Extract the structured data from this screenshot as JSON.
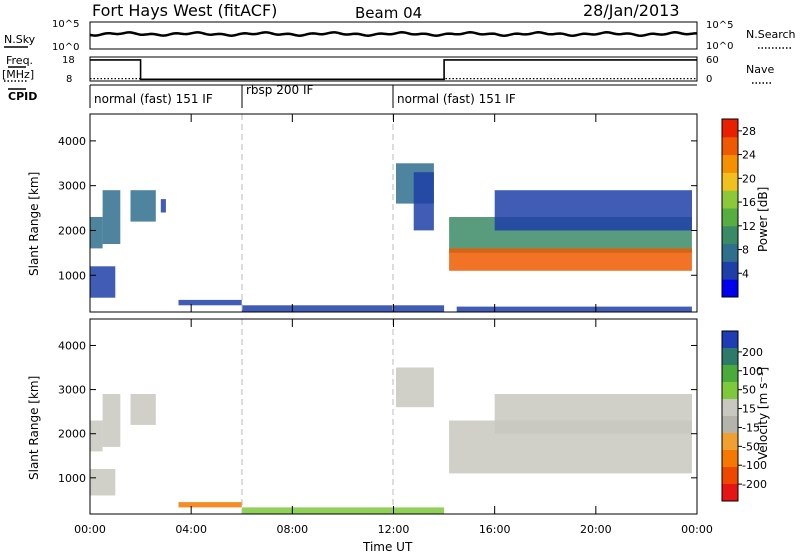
{
  "header": {
    "station": "Fort Hays West (fitACF)",
    "beam": "Beam 04",
    "date": "28/Jan/2013"
  },
  "noise_panel": {
    "left_label": "N.Sky",
    "right_label": "N.Search",
    "y_ticks_left": [
      "10^5",
      "10^0"
    ],
    "y_ticks_right": [
      "10^5",
      "10^0"
    ]
  },
  "freq_panel": {
    "left_label_1": "Freq.",
    "left_label_2": "[MHz]",
    "right_label": "Nave",
    "y_ticks_left": [
      "18",
      "8"
    ],
    "y_ticks_right": [
      "60",
      "0"
    ],
    "freq_steps": [
      [
        0,
        17.0
      ],
      [
        2.0,
        8.9
      ],
      [
        14.0,
        17.0
      ],
      [
        24.0,
        17.0
      ]
    ],
    "nave_steps": [
      [
        0,
        6
      ],
      [
        2.0,
        4
      ],
      [
        14.0,
        6
      ],
      [
        24.0,
        6
      ]
    ]
  },
  "cpid_panel": {
    "label": "CPID",
    "segments": [
      {
        "text": "normal (fast) 151 IF",
        "start": 0.0
      },
      {
        "text": "rbsp 200 IF",
        "start": 6.0
      },
      {
        "text": "normal (fast) 151 IF",
        "start": 12.0
      }
    ]
  },
  "colors": {
    "power": [
      "#0000ee",
      "#1f3fa8",
      "#2f6e8c",
      "#3b8a66",
      "#58ad40",
      "#8dc83a",
      "#f0c020",
      "#f59000",
      "#ef5a00",
      "#e82000"
    ],
    "velocity": [
      "#1e3cb4",
      "#2e7a6a",
      "#4aaa3a",
      "#7ec83c",
      "#c8c8c0",
      "#b4b4ac",
      "#f0a030",
      "#f57800",
      "#ee4800",
      "#e61414"
    ]
  },
  "chart_data": [
    {
      "type": "heatmap",
      "name": "power-panel",
      "ylabel": "Slant Range [km]",
      "xlabel": "",
      "xlim": [
        0,
        24
      ],
      "ylim": [
        180,
        4600
      ],
      "y_ticks": [
        1000,
        2000,
        3000,
        4000
      ],
      "colorbar_label": "Power [dB]",
      "colorbar_ticks": [
        4,
        8,
        12,
        16,
        20,
        24,
        28
      ],
      "colorbar_range": [
        0,
        30
      ],
      "patches": [
        {
          "t0": 0.0,
          "t1": 0.5,
          "r0": 1600,
          "r1": 2300,
          "v": 8
        },
        {
          "t0": 0.5,
          "t1": 1.2,
          "r0": 1700,
          "r1": 2900,
          "v": 6
        },
        {
          "t0": 0.0,
          "t1": 1.0,
          "r0": 500,
          "r1": 1200,
          "v": 5
        },
        {
          "t0": 1.6,
          "t1": 2.6,
          "r0": 2200,
          "r1": 2900,
          "v": 6
        },
        {
          "t0": 2.8,
          "t1": 3.0,
          "r0": 2400,
          "r1": 2700,
          "v": 5
        },
        {
          "t0": 3.5,
          "t1": 6.0,
          "r0": 330,
          "r1": 450,
          "v": 4
        },
        {
          "t0": 6.0,
          "t1": 14.0,
          "r0": 180,
          "r1": 330,
          "v": 3
        },
        {
          "t0": 12.1,
          "t1": 13.6,
          "r0": 2600,
          "r1": 3500,
          "v": 6
        },
        {
          "t0": 12.8,
          "t1": 13.6,
          "r0": 2000,
          "r1": 3300,
          "v": 3
        },
        {
          "t0": 14.2,
          "t1": 23.8,
          "r0": 1500,
          "r1": 2300,
          "v": 11
        },
        {
          "t0": 14.2,
          "t1": 23.8,
          "r0": 1100,
          "r1": 1600,
          "v": 25
        },
        {
          "t0": 16.0,
          "t1": 23.8,
          "r0": 2000,
          "r1": 2900,
          "v": 5
        },
        {
          "t0": 14.5,
          "t1": 23.8,
          "r0": 180,
          "r1": 300,
          "v": 3
        }
      ]
    },
    {
      "type": "heatmap",
      "name": "velocity-panel",
      "ylabel": "Slant Range [km]",
      "xlabel": "Time UT",
      "xlim": [
        0,
        24
      ],
      "ylim": [
        180,
        4600
      ],
      "y_ticks": [
        1000,
        2000,
        3000,
        4000
      ],
      "x_ticks": [
        "00:00",
        "04:00",
        "08:00",
        "12:00",
        "16:00",
        "20:00",
        "00:00"
      ],
      "x_tick_values": [
        0,
        4,
        8,
        12,
        16,
        20,
        24
      ],
      "colorbar_label": "Velocity [m s⁻¹]",
      "colorbar_ticks": [
        200,
        100,
        50,
        15,
        -15,
        -50,
        -100,
        -200
      ],
      "patches": [
        {
          "t0": 0.0,
          "t1": 0.5,
          "r0": 1600,
          "r1": 2300,
          "v": 0
        },
        {
          "t0": 0.5,
          "t1": 1.2,
          "r0": 1700,
          "r1": 2900,
          "v": 0
        },
        {
          "t0": 0.0,
          "t1": 1.0,
          "r0": 600,
          "r1": 1200,
          "v": 0
        },
        {
          "t0": 1.6,
          "t1": 2.6,
          "r0": 2200,
          "r1": 2900,
          "v": 0
        },
        {
          "t0": 3.5,
          "t1": 6.0,
          "r0": 330,
          "r1": 450,
          "v": -60
        },
        {
          "t0": 6.0,
          "t1": 14.0,
          "r0": 180,
          "r1": 330,
          "v": 30
        },
        {
          "t0": 12.1,
          "t1": 13.6,
          "r0": 2600,
          "r1": 3500,
          "v": 0
        },
        {
          "t0": 14.2,
          "t1": 23.8,
          "r0": 1100,
          "r1": 2300,
          "v": 0
        },
        {
          "t0": 16.0,
          "t1": 23.8,
          "r0": 2000,
          "r1": 2900,
          "v": 0
        }
      ]
    }
  ]
}
